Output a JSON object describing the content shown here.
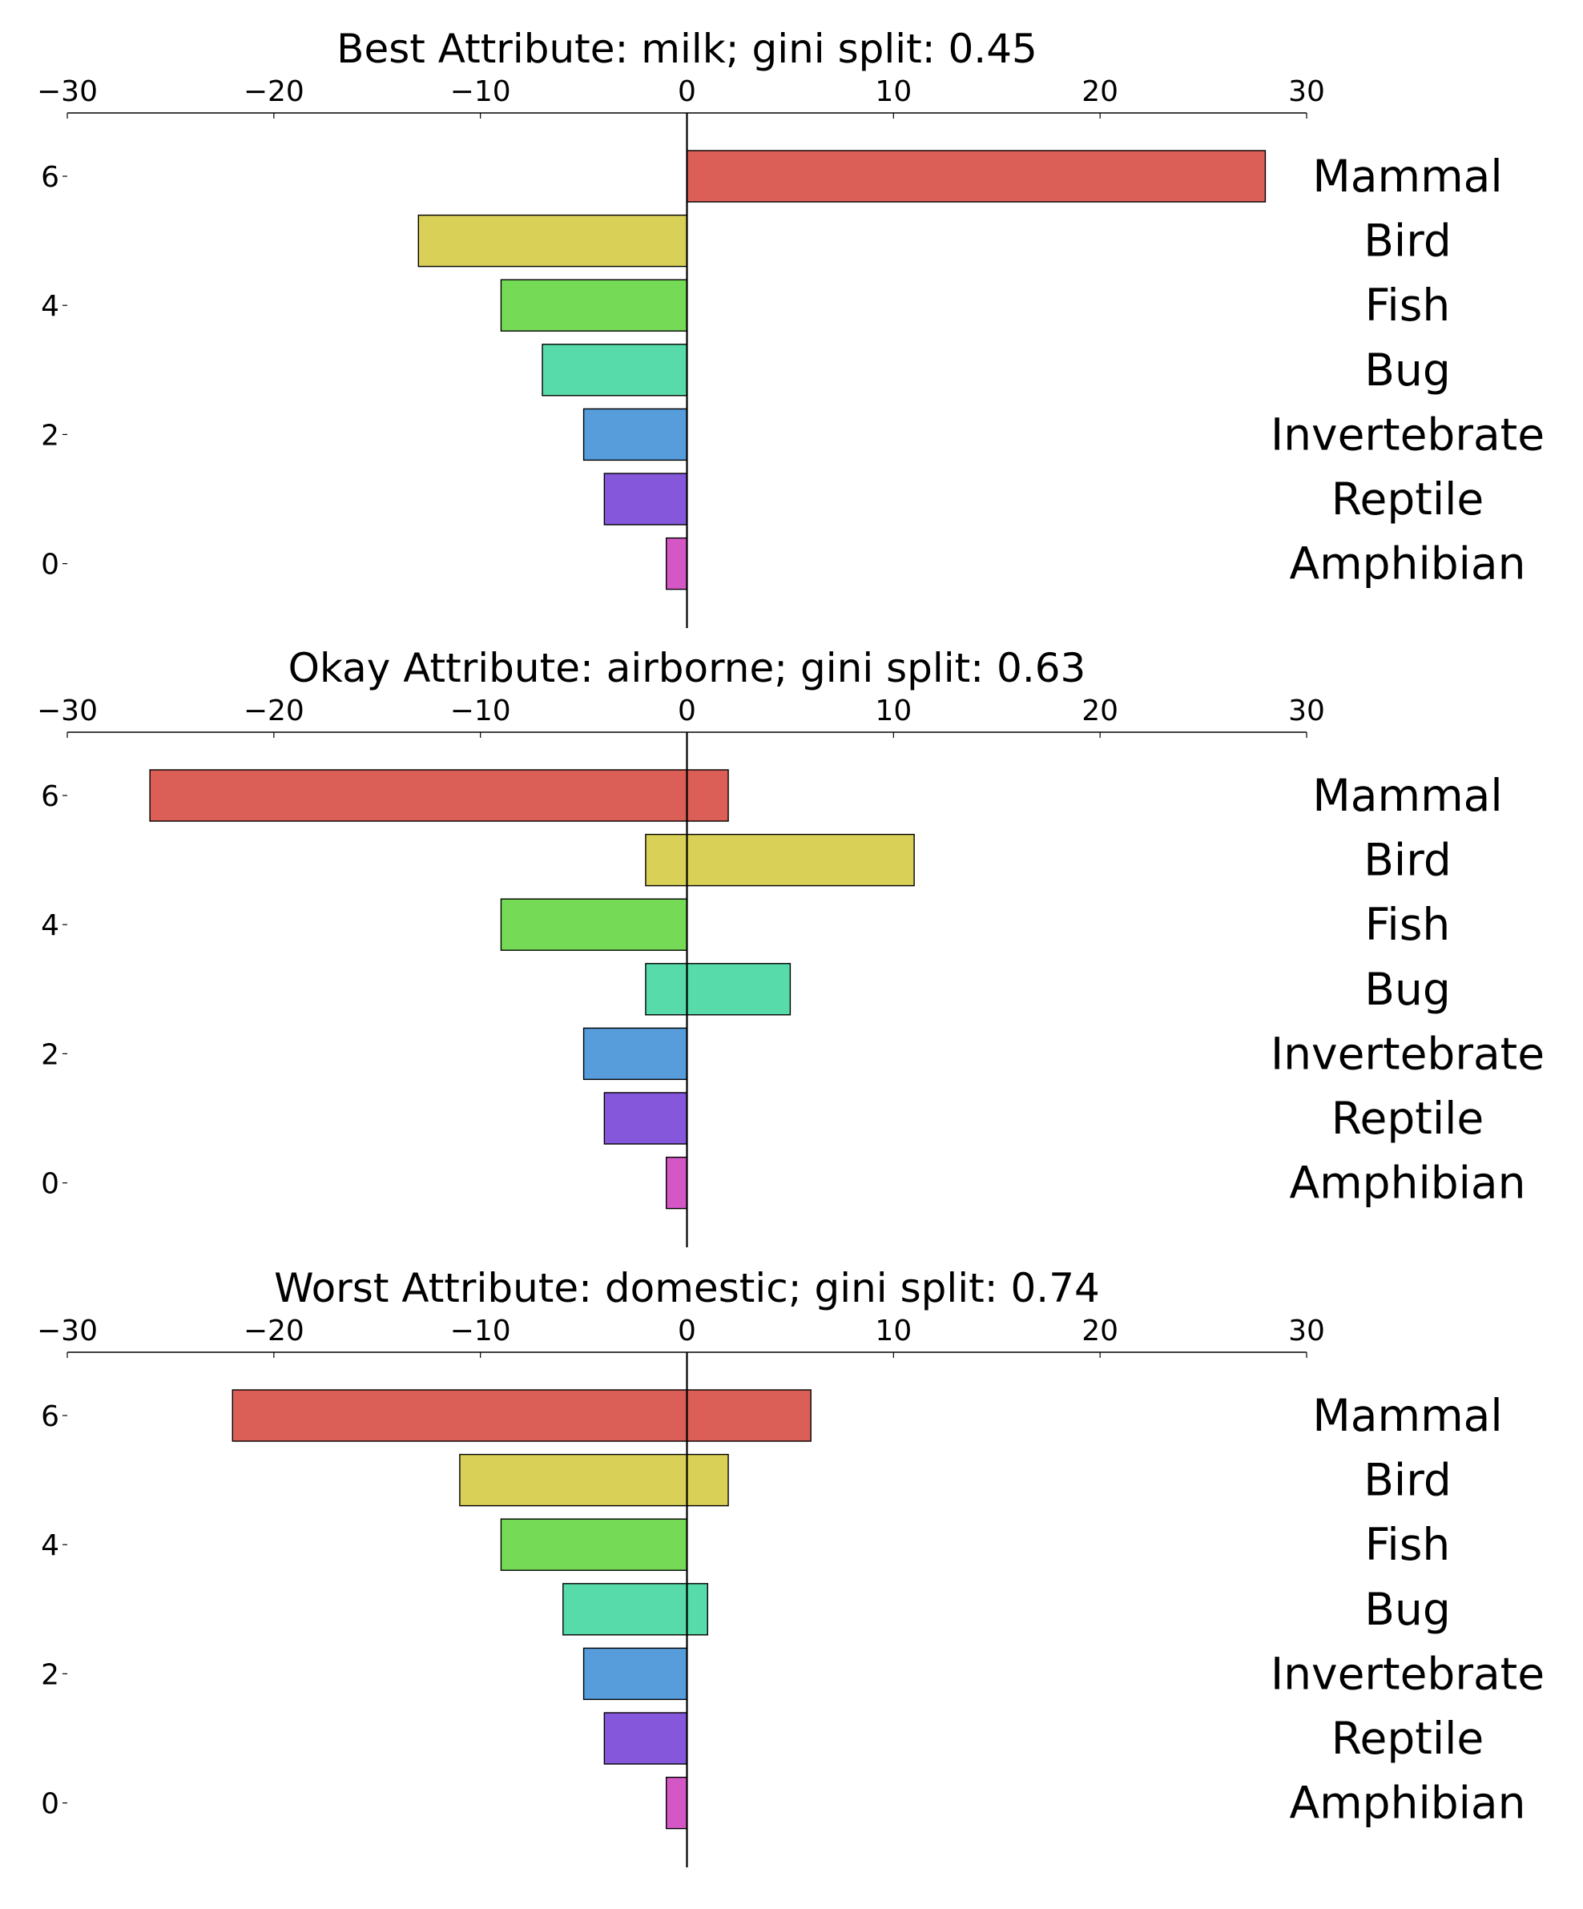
{
  "chart_data": [
    {
      "type": "bar",
      "orientation": "horizontal",
      "title": "Best Attribute: milk; gini split: 0.45",
      "xlim": [
        -30,
        30
      ],
      "x_ticks": [
        "−30",
        "−20",
        "−10",
        "0",
        "10",
        "20",
        "30"
      ],
      "y_ticks": [
        "6",
        "4",
        "2",
        "0"
      ],
      "y_tick_values": [
        6,
        4,
        2,
        0
      ],
      "categories": [
        "Mammal",
        "Bird",
        "Fish",
        "Bug",
        "Invertebrate",
        "Reptile",
        "Amphibian"
      ],
      "category_y": [
        6,
        5,
        4,
        3,
        2,
        1,
        0
      ],
      "series": [
        {
          "values": [
            0,
            -13,
            -9,
            -7,
            -5,
            -4,
            -1
          ]
        },
        {
          "values": [
            28,
            0,
            0,
            0,
            0,
            0,
            0
          ]
        }
      ],
      "grid": false
    },
    {
      "type": "bar",
      "orientation": "horizontal",
      "title": "Okay Attribute: airborne; gini split: 0.63",
      "xlim": [
        -30,
        30
      ],
      "x_ticks": [
        "−30",
        "−20",
        "−10",
        "0",
        "10",
        "20",
        "30"
      ],
      "y_ticks": [
        "6",
        "4",
        "2",
        "0"
      ],
      "y_tick_values": [
        6,
        4,
        2,
        0
      ],
      "categories": [
        "Mammal",
        "Bird",
        "Fish",
        "Bug",
        "Invertebrate",
        "Reptile",
        "Amphibian"
      ],
      "category_y": [
        6,
        5,
        4,
        3,
        2,
        1,
        0
      ],
      "series": [
        {
          "values": [
            -26,
            -2,
            -9,
            -2,
            -5,
            -4,
            -1
          ]
        },
        {
          "values": [
            2,
            11,
            0,
            5,
            0,
            0,
            0
          ]
        }
      ],
      "grid": false
    },
    {
      "type": "bar",
      "orientation": "horizontal",
      "title": "Worst Attribute: domestic; gini split: 0.74",
      "xlim": [
        -30,
        30
      ],
      "x_ticks": [
        "−30",
        "−20",
        "−10",
        "0",
        "10",
        "20",
        "30"
      ],
      "y_ticks": [
        "6",
        "4",
        "2",
        "0"
      ],
      "y_tick_values": [
        6,
        4,
        2,
        0
      ],
      "categories": [
        "Mammal",
        "Bird",
        "Fish",
        "Bug",
        "Invertebrate",
        "Reptile",
        "Amphibian"
      ],
      "category_y": [
        6,
        5,
        4,
        3,
        2,
        1,
        0
      ],
      "series": [
        {
          "values": [
            -22,
            -11,
            -9,
            -6,
            -5,
            -4,
            -1
          ]
        },
        {
          "values": [
            6,
            2,
            0,
            1,
            0,
            0,
            0
          ]
        }
      ],
      "grid": false
    }
  ],
  "colors": {
    "Mammal": "#db5f57",
    "Bird": "#d9d057",
    "Fish": "#75db57",
    "Bug": "#57dbaa",
    "Invertebrate": "#579cdb",
    "Reptile": "#8557db",
    "Amphibian": "#d557c6"
  }
}
